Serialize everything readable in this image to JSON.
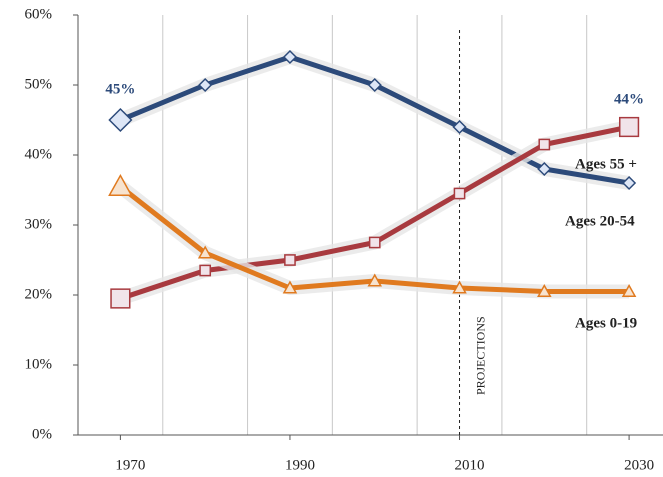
{
  "chart_data": {
    "type": "line",
    "x": [
      1970,
      1980,
      1990,
      2000,
      2010,
      2020,
      2030
    ],
    "series": [
      {
        "name": "Ages 55 +",
        "color": "#2c4a7a",
        "marker": "diamond",
        "values": [
          45,
          50,
          54,
          50,
          44,
          38,
          36
        ]
      },
      {
        "name": "Ages 20-54",
        "color": "#a83a3f",
        "marker": "square",
        "values": [
          19.5,
          23.5,
          25,
          27.5,
          34.5,
          41.5,
          44
        ]
      },
      {
        "name": "Ages 0-19",
        "color": "#e07a1f",
        "marker": "triangle",
        "values": [
          35.5,
          26,
          21,
          22,
          21,
          20.5,
          20.5
        ]
      }
    ],
    "annotations": [
      "45%",
      "44%",
      "PROJECTIONS"
    ],
    "projection_x": 2010,
    "xlim": [
      1965,
      2034
    ],
    "xticks": [
      1970,
      1990,
      2010,
      2030
    ],
    "ylim": [
      0,
      60
    ],
    "yticks": [
      {
        "value": 0,
        "label": "0%"
      },
      {
        "value": 10,
        "label": "10%"
      },
      {
        "value": 20,
        "label": "20%"
      },
      {
        "value": 30,
        "label": "30%"
      },
      {
        "value": 40,
        "label": "40%"
      },
      {
        "value": 50,
        "label": "50%"
      },
      {
        "value": 60,
        "label": "60%"
      }
    ],
    "grid": true
  }
}
